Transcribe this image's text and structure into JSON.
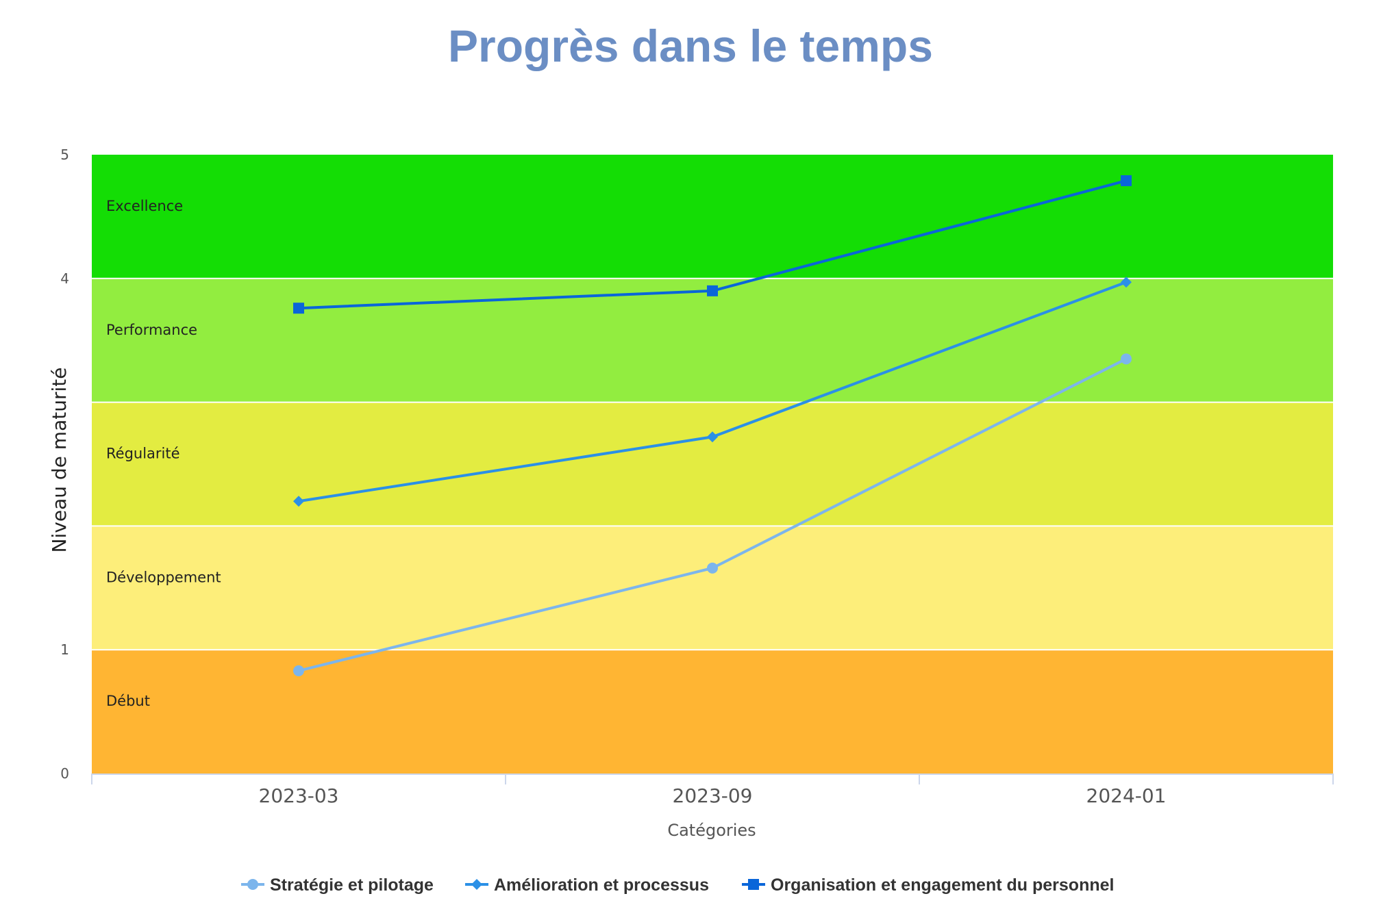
{
  "chart_data": {
    "type": "line",
    "title": "Progrès dans le temps",
    "xlabel": "Catégories",
    "ylabel": "Niveau de maturité",
    "categories": [
      "2023-03",
      "2023-09",
      "2024-01"
    ],
    "ylim": [
      0,
      5
    ],
    "y_ticks": [
      "0",
      "1",
      "",
      "",
      "4",
      "5"
    ],
    "grid": false,
    "legend_position": "bottom",
    "bands": [
      {
        "label": "Début",
        "from": 0,
        "to": 1,
        "color": "#ffb533"
      },
      {
        "label": "Développement",
        "from": 1,
        "to": 2,
        "color": "#fdee7a"
      },
      {
        "label": "Régularité",
        "from": 2,
        "to": 3,
        "color": "#e3ec41"
      },
      {
        "label": "Performance",
        "from": 3,
        "to": 4,
        "color": "#92ed40"
      },
      {
        "label": "Excellence",
        "from": 4,
        "to": 5,
        "color": "#14dd05"
      }
    ],
    "series": [
      {
        "name": "Stratégie et pilotage",
        "values": [
          0.83,
          1.66,
          3.35
        ],
        "color": "#7cb5ec",
        "marker": "circle"
      },
      {
        "name": "Amélioration et processus",
        "values": [
          2.2,
          2.72,
          3.97
        ],
        "color": "#2b90e6",
        "marker": "diamond"
      },
      {
        "name": "Organisation et engagement du personnel",
        "values": [
          3.76,
          3.9,
          4.79
        ],
        "color": "#0a66d9",
        "marker": "square"
      }
    ]
  }
}
